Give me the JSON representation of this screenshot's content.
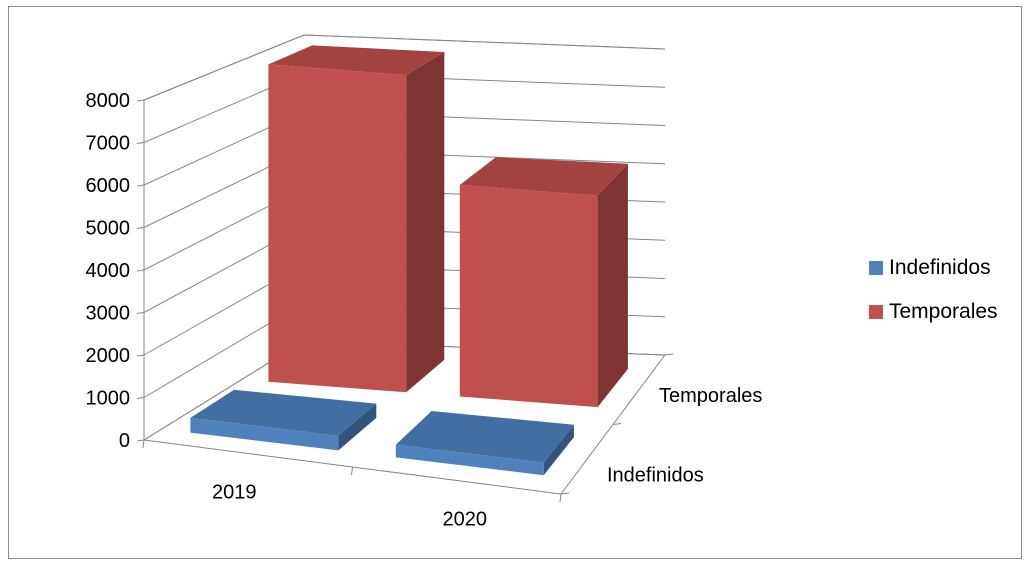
{
  "chart_data": {
    "type": "bar",
    "subtype": "3d-column",
    "categories": [
      "2019",
      "2020"
    ],
    "series": [
      {
        "name": "Indefinidos",
        "values": [
          350,
          300
        ],
        "color": "#4f81bd"
      },
      {
        "name": "Temporales",
        "values": [
          7950,
          5300
        ],
        "color": "#c0504d"
      }
    ],
    "depth_labels": [
      "Indefinidos",
      "Temporales"
    ],
    "ylim": [
      0,
      8000
    ],
    "ytick_labels": [
      "0",
      "1000",
      "2000",
      "3000",
      "4000",
      "5000",
      "6000",
      "7000",
      "8000"
    ],
    "grid": true,
    "legend_position": "right"
  }
}
